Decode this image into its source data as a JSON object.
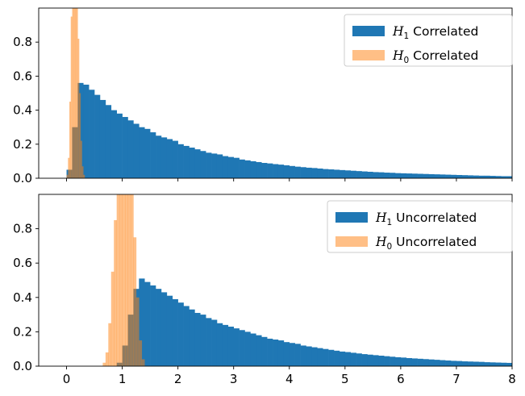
{
  "chart_data": [
    {
      "type": "histogram",
      "panel": "top",
      "xlim": [
        -0.5,
        8
      ],
      "ylim": [
        0,
        1
      ],
      "yticks": [
        0.0,
        0.2,
        0.4,
        0.6,
        0.8
      ],
      "legend_position": "top-right",
      "series": [
        {
          "name": "H1 Correlated",
          "legend": {
            "sym": "H",
            "sub": "1",
            "word": "Correlated"
          },
          "color": "#1f77b4",
          "opacity": 1.0,
          "x_start": 0.0,
          "bin_width": 0.1,
          "values": [
            0.05,
            0.3,
            0.56,
            0.55,
            0.52,
            0.49,
            0.46,
            0.43,
            0.4,
            0.38,
            0.36,
            0.34,
            0.32,
            0.3,
            0.29,
            0.27,
            0.25,
            0.24,
            0.23,
            0.22,
            0.2,
            0.19,
            0.18,
            0.17,
            0.16,
            0.15,
            0.145,
            0.14,
            0.13,
            0.125,
            0.12,
            0.11,
            0.105,
            0.1,
            0.095,
            0.09,
            0.087,
            0.083,
            0.08,
            0.076,
            0.072,
            0.068,
            0.065,
            0.062,
            0.06,
            0.057,
            0.054,
            0.052,
            0.05,
            0.048,
            0.046,
            0.044,
            0.042,
            0.04,
            0.038,
            0.036,
            0.035,
            0.033,
            0.032,
            0.03,
            0.029,
            0.028,
            0.027,
            0.026,
            0.025,
            0.024,
            0.023,
            0.022,
            0.021,
            0.02,
            0.019,
            0.018,
            0.017,
            0.016,
            0.015,
            0.015,
            0.014,
            0.013,
            0.012,
            0.012
          ]
        },
        {
          "name": "H0 Correlated",
          "legend": {
            "sym": "H",
            "sub": "0",
            "word": "Correlated"
          },
          "color": "#ff7f0e",
          "opacity": 0.5,
          "x_start": 0.0,
          "bin_width": 0.025,
          "values": [
            0.02,
            0.12,
            0.45,
            0.95,
            1.0,
            1.0,
            1.0,
            1.0,
            0.82,
            0.5,
            0.22,
            0.07,
            0.02
          ]
        }
      ]
    },
    {
      "type": "histogram",
      "panel": "bottom",
      "xlim": [
        -0.5,
        8
      ],
      "ylim": [
        0,
        1
      ],
      "yticks": [
        0.0,
        0.2,
        0.4,
        0.6,
        0.8
      ],
      "xticks": [
        0,
        1,
        2,
        3,
        4,
        5,
        6,
        7,
        8
      ],
      "legend_position": "top-right",
      "series": [
        {
          "name": "H1 Uncorrelated",
          "legend": {
            "sym": "H",
            "sub": "1",
            "word": "Uncorrelated"
          },
          "color": "#1f77b4",
          "opacity": 1.0,
          "x_start": 0.9,
          "bin_width": 0.1,
          "values": [
            0.02,
            0.12,
            0.3,
            0.45,
            0.51,
            0.49,
            0.47,
            0.45,
            0.43,
            0.41,
            0.39,
            0.37,
            0.35,
            0.33,
            0.31,
            0.3,
            0.28,
            0.27,
            0.25,
            0.24,
            0.23,
            0.22,
            0.21,
            0.2,
            0.19,
            0.18,
            0.17,
            0.16,
            0.155,
            0.15,
            0.14,
            0.135,
            0.13,
            0.12,
            0.115,
            0.11,
            0.105,
            0.1,
            0.095,
            0.09,
            0.085,
            0.082,
            0.078,
            0.074,
            0.07,
            0.067,
            0.064,
            0.061,
            0.058,
            0.055,
            0.052,
            0.05,
            0.047,
            0.045,
            0.043,
            0.041,
            0.039,
            0.037,
            0.035,
            0.033,
            0.031,
            0.03,
            0.028,
            0.027,
            0.026,
            0.025,
            0.023,
            0.022,
            0.021,
            0.02,
            0.019,
            0.018
          ]
        },
        {
          "name": "H0 Uncorrelated",
          "legend": {
            "sym": "H",
            "sub": "0",
            "word": "Uncorrelated"
          },
          "color": "#ff7f0e",
          "opacity": 0.5,
          "x_start": 0.65,
          "bin_width": 0.05,
          "values": [
            0.02,
            0.08,
            0.25,
            0.55,
            0.85,
            1.0,
            1.0,
            1.0,
            1.0,
            1.0,
            1.0,
            0.75,
            0.4,
            0.15,
            0.04
          ]
        }
      ]
    }
  ]
}
